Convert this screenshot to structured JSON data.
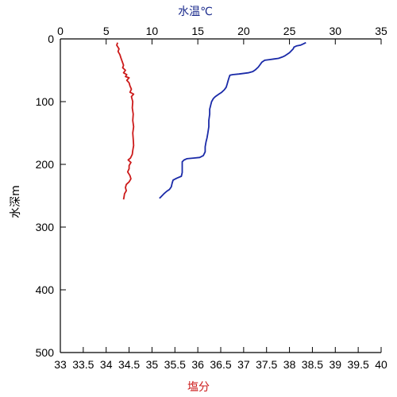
{
  "chart_data": {
    "type": "line",
    "axes": {
      "top_x": {
        "label": "水温℃",
        "color": "#1a2a8c",
        "range": [
          0,
          35
        ],
        "ticks": [
          "0",
          "5",
          "10",
          "15",
          "20",
          "25",
          "30",
          "35"
        ]
      },
      "bottom_x": {
        "label": "塩分",
        "color": "#cc1a1a",
        "range": [
          33,
          40
        ],
        "ticks": [
          "33",
          "33.5",
          "34",
          "34.5",
          "35",
          "35.5",
          "36",
          "36.5",
          "37",
          "37.5",
          "38",
          "38.5",
          "39",
          "39.5",
          "40"
        ]
      },
      "y": {
        "label": "水深m",
        "color": "#000000",
        "range": [
          0,
          500
        ],
        "inverted": true,
        "ticks": [
          "0",
          "100",
          "200",
          "300",
          "400",
          "500"
        ]
      }
    },
    "grid": false,
    "series": [
      {
        "axis": "top_x",
        "color": "#1a2aa8",
        "points": [
          [
            26.8,
            6
          ],
          [
            26.5,
            8
          ],
          [
            26.2,
            10
          ],
          [
            25.8,
            11
          ],
          [
            25.5,
            13
          ],
          [
            25.4,
            16
          ],
          [
            25.2,
            19
          ],
          [
            25.0,
            22
          ],
          [
            24.7,
            25
          ],
          [
            24.5,
            27
          ],
          [
            24.2,
            29
          ],
          [
            23.8,
            31
          ],
          [
            23.3,
            32
          ],
          [
            22.8,
            33
          ],
          [
            22.3,
            34
          ],
          [
            22.0,
            37
          ],
          [
            21.8,
            41
          ],
          [
            21.6,
            45
          ],
          [
            21.3,
            49
          ],
          [
            21.0,
            52
          ],
          [
            20.5,
            54
          ],
          [
            19.5,
            56
          ],
          [
            18.8,
            57
          ],
          [
            18.5,
            58
          ],
          [
            18.4,
            62
          ],
          [
            18.3,
            67
          ],
          [
            18.2,
            72
          ],
          [
            18.1,
            77
          ],
          [
            17.9,
            81
          ],
          [
            17.6,
            85
          ],
          [
            17.3,
            88
          ],
          [
            17.1,
            90
          ],
          [
            16.9,
            92
          ],
          [
            16.7,
            95
          ],
          [
            16.5,
            100
          ],
          [
            16.4,
            106
          ],
          [
            16.3,
            112
          ],
          [
            16.3,
            120
          ],
          [
            16.2,
            130
          ],
          [
            16.2,
            140
          ],
          [
            16.1,
            150
          ],
          [
            16.0,
            158
          ],
          [
            15.9,
            164
          ],
          [
            15.8,
            172
          ],
          [
            15.8,
            180
          ],
          [
            15.6,
            186
          ],
          [
            15.2,
            189
          ],
          [
            14.5,
            190
          ],
          [
            13.8,
            191
          ],
          [
            13.5,
            193
          ],
          [
            13.3,
            196
          ],
          [
            13.3,
            200
          ],
          [
            13.3,
            206
          ],
          [
            13.3,
            213
          ],
          [
            13.2,
            219
          ],
          [
            12.7,
            222
          ],
          [
            12.3,
            225
          ],
          [
            12.2,
            230
          ],
          [
            12.1,
            236
          ],
          [
            11.9,
            240
          ],
          [
            11.6,
            243
          ],
          [
            11.3,
            247
          ],
          [
            11.1,
            250
          ],
          [
            10.9,
            253
          ],
          [
            10.8,
            254
          ]
        ]
      },
      {
        "axis": "bottom_x",
        "color": "#cc1a1a",
        "points": [
          [
            34.25,
            6
          ],
          [
            34.23,
            10
          ],
          [
            34.28,
            16
          ],
          [
            34.26,
            20
          ],
          [
            34.3,
            25
          ],
          [
            34.32,
            30
          ],
          [
            34.35,
            36
          ],
          [
            34.38,
            42
          ],
          [
            34.36,
            46
          ],
          [
            34.42,
            50
          ],
          [
            34.38,
            54
          ],
          [
            34.45,
            57
          ],
          [
            34.42,
            60
          ],
          [
            34.5,
            62
          ],
          [
            34.45,
            66
          ],
          [
            34.5,
            70
          ],
          [
            34.52,
            75
          ],
          [
            34.55,
            80
          ],
          [
            34.52,
            85
          ],
          [
            34.6,
            88
          ],
          [
            34.55,
            92
          ],
          [
            34.58,
            100
          ],
          [
            34.57,
            110
          ],
          [
            34.59,
            120
          ],
          [
            34.58,
            130
          ],
          [
            34.6,
            140
          ],
          [
            34.58,
            150
          ],
          [
            34.59,
            160
          ],
          [
            34.6,
            170
          ],
          [
            34.58,
            178
          ],
          [
            34.57,
            184
          ],
          [
            34.53,
            190
          ],
          [
            34.48,
            193
          ],
          [
            34.54,
            197
          ],
          [
            34.5,
            202
          ],
          [
            34.5,
            207
          ],
          [
            34.47,
            212
          ],
          [
            34.52,
            218
          ],
          [
            34.54,
            223
          ],
          [
            34.5,
            228
          ],
          [
            34.44,
            232
          ],
          [
            34.42,
            237
          ],
          [
            34.44,
            242
          ],
          [
            34.4,
            247
          ],
          [
            34.39,
            252
          ],
          [
            34.38,
            256
          ]
        ]
      }
    ]
  }
}
